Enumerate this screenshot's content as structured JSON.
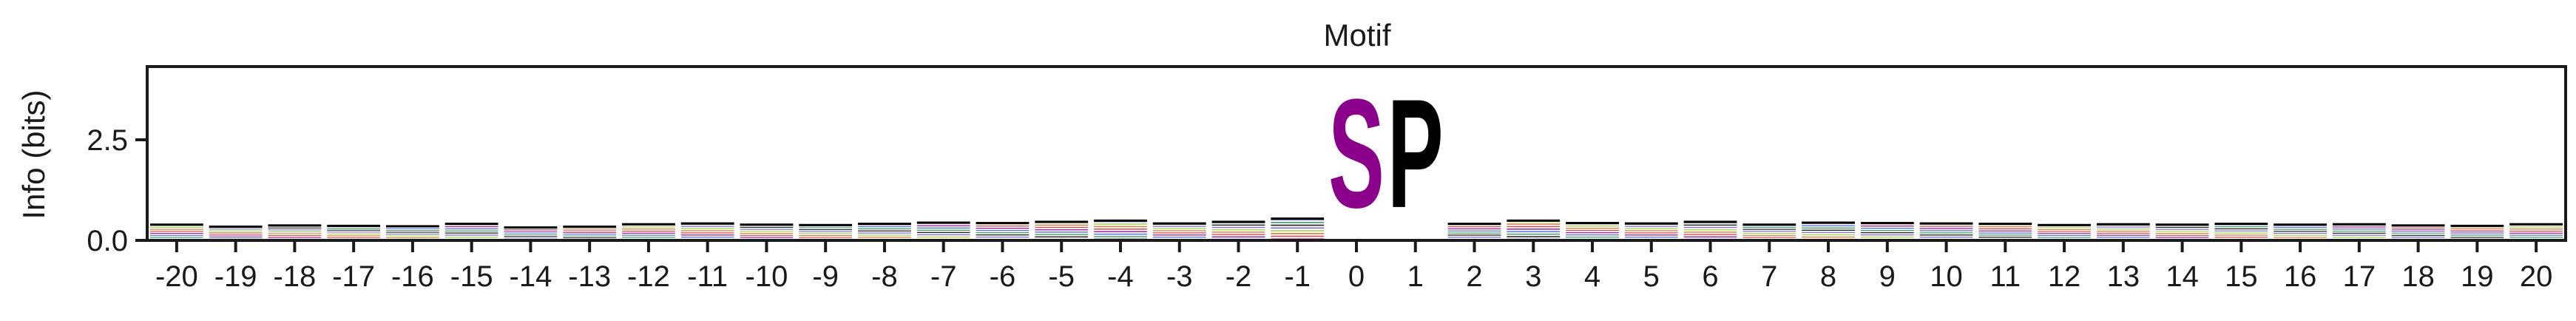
{
  "chart_data": {
    "type": "sequence-logo",
    "title": "Motif",
    "xlabel": "",
    "ylabel": "Info (bits)",
    "ylim": [
      0,
      4.32
    ],
    "yticks": [
      0.0,
      2.5
    ],
    "ytick_labels": [
      "0.0",
      "2.5"
    ],
    "positions": [
      -20,
      -19,
      -18,
      -17,
      -16,
      -15,
      -14,
      -13,
      -12,
      -11,
      -10,
      -9,
      -8,
      -7,
      -6,
      -5,
      -4,
      -3,
      -2,
      -1,
      0,
      1,
      2,
      3,
      4,
      5,
      6,
      7,
      8,
      9,
      10,
      11,
      12,
      13,
      14,
      15,
      16,
      17,
      18,
      19,
      20
    ],
    "x_tick_labels": [
      "-20",
      "-19",
      "-18",
      "-17",
      "-16",
      "-15",
      "-14",
      "-13",
      "-12",
      "-11",
      "-10",
      "-9",
      "-8",
      "-7",
      "-6",
      "-5",
      "-4",
      "-3",
      "-2",
      "-1",
      "0",
      "1",
      "2",
      "3",
      "4",
      "5",
      "6",
      "7",
      "8",
      "9",
      "10",
      "11",
      "12",
      "13",
      "14",
      "15",
      "16",
      "17",
      "18",
      "19",
      "20"
    ],
    "dominant_letters": [
      {
        "position": 0,
        "letter": "S",
        "bits": 4.3,
        "color": "#8b008b"
      },
      {
        "position": 1,
        "letter": "P",
        "bits": 4.3,
        "color": "#000000"
      }
    ],
    "background_total_bits": [
      0.4,
      0.35,
      0.38,
      0.37,
      0.36,
      0.42,
      0.33,
      0.35,
      0.41,
      0.43,
      0.4,
      0.39,
      0.42,
      0.45,
      0.44,
      0.47,
      0.5,
      0.43,
      0.47,
      0.55,
      0,
      0,
      0.42,
      0.5,
      0.44,
      0.43,
      0.47,
      0.4,
      0.45,
      0.44,
      0.43,
      0.42,
      0.39,
      0.41,
      0.4,
      0.42,
      0.4,
      0.41,
      0.38,
      0.37,
      0.41
    ],
    "residue_colors": [
      "#000000",
      "#2e8b57",
      "#3a5fcd",
      "#8b008b",
      "#cc3333",
      "#d2691e",
      "#9acd32",
      "#6a5acd"
    ]
  }
}
